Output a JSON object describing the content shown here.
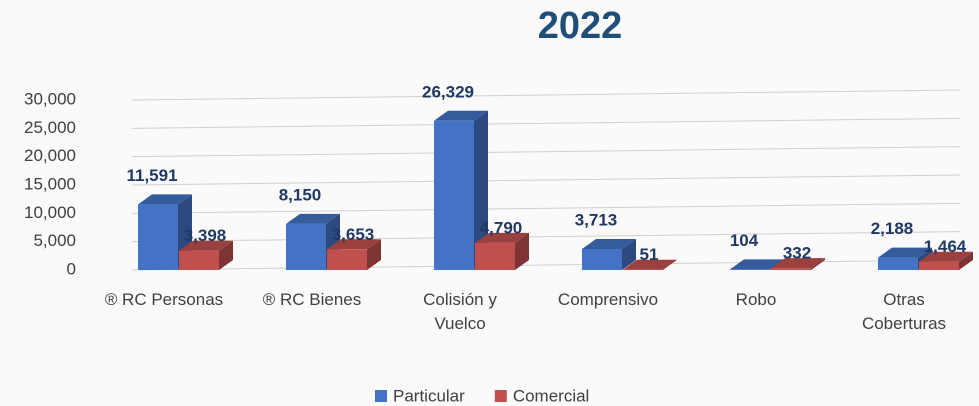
{
  "chart_data": {
    "type": "bar3d",
    "title": "2022",
    "categories": [
      "® RC Personas",
      "® RC Bienes",
      "Colisión y Vuelco",
      "Comprensivo",
      "Robo",
      "Otras Coberturas"
    ],
    "series": [
      {
        "name": "Particular",
        "color": "#4472c4",
        "values": [
          11591,
          8150,
          26329,
          3713,
          104,
          2188
        ],
        "value_labels": [
          "11,591",
          "8,150",
          "26,329",
          "3,713",
          "104",
          "2,188"
        ]
      },
      {
        "name": "Comercial",
        "color": "#c0504d",
        "values": [
          3398,
          3653,
          4790,
          51,
          332,
          1464
        ],
        "value_labels": [
          "3,398",
          "3,653",
          "4,790",
          "51",
          "332",
          "1,464"
        ]
      }
    ],
    "ylim": [
      0,
      30000
    ],
    "yticks": [
      0,
      {
        "value": 5000,
        "label": "5,000"
      },
      {
        "value": 10000,
        "label": "10,000"
      },
      {
        "value": 15000,
        "label": "15,000"
      },
      {
        "value": 20000,
        "label": "20,000"
      },
      {
        "value": 25000,
        "label": "25,000"
      },
      {
        "value": 30000,
        "label": "30,000"
      }
    ],
    "grid": true,
    "legend": "bottom"
  }
}
